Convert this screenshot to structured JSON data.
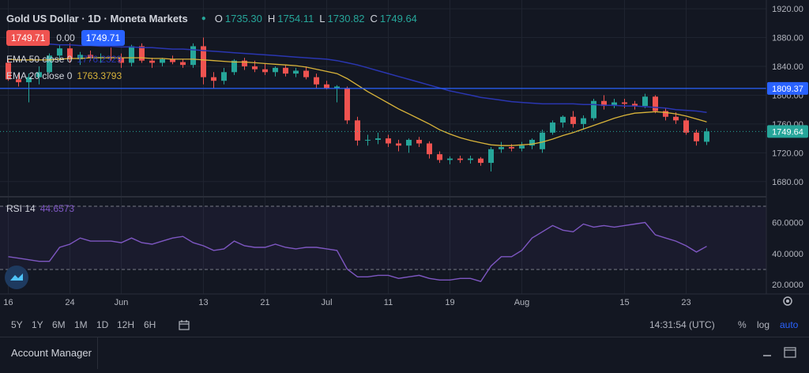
{
  "header": {
    "symbol": "Gold US Dollar · 1D · Moneta Markets",
    "open_label": "O",
    "open": "1735.30",
    "high_label": "H",
    "high": "1754.11",
    "low_label": "L",
    "low": "1730.82",
    "close_label": "C",
    "close": "1749.64"
  },
  "trade": {
    "sell": "1749.71",
    "spread": "0.00",
    "buy": "1749.71"
  },
  "indicators": {
    "ema50_label": "EMA 50 close 0",
    "ema50_value": "1776.2329",
    "ema20_label": "EMA 20 close 0",
    "ema20_value": "1763.3793",
    "rsi_label": "RSI 14",
    "rsi_value": "44.6573"
  },
  "toolbar": {
    "timeframes": [
      "5Y",
      "1Y",
      "6M",
      "1M",
      "1D",
      "12H",
      "6H"
    ],
    "clock": "14:31:54 (UTC)",
    "percent": "%",
    "log": "log",
    "auto": "auto"
  },
  "bottom": {
    "account_manager": "Account Manager"
  },
  "colors": {
    "up": "#26a69a",
    "down": "#ef5350",
    "ema50": "#2a36b1",
    "ema20": "#d9b43a",
    "rsi": "#7e57c2",
    "level": "#2962ff"
  },
  "chart_data": {
    "type": "candlestick",
    "y_ticks": [
      1680,
      1720,
      1760,
      1800,
      1840,
      1880,
      1920
    ],
    "y_tick_labels": [
      "1680.00",
      "1720.00",
      "1760.00",
      "1800.00",
      "1840.00",
      "1880.00",
      "1920.00"
    ],
    "ylim": [
      1660,
      1930
    ],
    "horizontal_level": {
      "value": 1809.37,
      "label": "1809.37"
    },
    "last_price": {
      "value": 1749.64,
      "label": "1749.64"
    },
    "x_labels": [
      "16",
      "24",
      "Jun",
      "13",
      "21",
      "Jul",
      "11",
      "19",
      "Aug",
      "15",
      "23"
    ],
    "x_label_index": [
      0,
      6,
      11,
      19,
      25,
      31,
      37,
      43,
      50,
      60,
      66
    ],
    "candles": [
      [
        1845,
        1850,
        1820,
        1822
      ],
      [
        1822,
        1830,
        1812,
        1818
      ],
      [
        1818,
        1830,
        1790,
        1825
      ],
      [
        1825,
        1840,
        1815,
        1832
      ],
      [
        1832,
        1858,
        1830,
        1855
      ],
      [
        1855,
        1870,
        1848,
        1865
      ],
      [
        1865,
        1872,
        1845,
        1850
      ],
      [
        1850,
        1860,
        1842,
        1856
      ],
      [
        1856,
        1862,
        1848,
        1852
      ],
      [
        1852,
        1858,
        1845,
        1853
      ],
      [
        1853,
        1866,
        1848,
        1852
      ],
      [
        1852,
        1858,
        1838,
        1845
      ],
      [
        1845,
        1870,
        1840,
        1868
      ],
      [
        1868,
        1872,
        1845,
        1848
      ],
      [
        1848,
        1852,
        1838,
        1845
      ],
      [
        1845,
        1852,
        1840,
        1850
      ],
      [
        1850,
        1855,
        1843,
        1846
      ],
      [
        1846,
        1850,
        1838,
        1842
      ],
      [
        1842,
        1872,
        1838,
        1868
      ],
      [
        1868,
        1880,
        1815,
        1825
      ],
      [
        1825,
        1832,
        1810,
        1820
      ],
      [
        1820,
        1838,
        1815,
        1832
      ],
      [
        1832,
        1850,
        1828,
        1848
      ],
      [
        1848,
        1852,
        1835,
        1840
      ],
      [
        1840,
        1848,
        1832,
        1836
      ],
      [
        1836,
        1844,
        1828,
        1832
      ],
      [
        1832,
        1840,
        1826,
        1838
      ],
      [
        1838,
        1842,
        1826,
        1830
      ],
      [
        1830,
        1838,
        1825,
        1834
      ],
      [
        1834,
        1840,
        1822,
        1825
      ],
      [
        1825,
        1830,
        1810,
        1815
      ],
      [
        1815,
        1820,
        1808,
        1810
      ],
      [
        1810,
        1814,
        1790,
        1812
      ],
      [
        1810,
        1812,
        1760,
        1765
      ],
      [
        1765,
        1770,
        1730,
        1737
      ],
      [
        1737,
        1745,
        1730,
        1738
      ],
      [
        1738,
        1748,
        1732,
        1740
      ],
      [
        1740,
        1745,
        1728,
        1733
      ],
      [
        1733,
        1738,
        1722,
        1730
      ],
      [
        1730,
        1740,
        1720,
        1738
      ],
      [
        1738,
        1742,
        1728,
        1733
      ],
      [
        1733,
        1736,
        1712,
        1718
      ],
      [
        1718,
        1722,
        1706,
        1710
      ],
      [
        1710,
        1715,
        1704,
        1712
      ],
      [
        1712,
        1716,
        1706,
        1710
      ],
      [
        1710,
        1716,
        1705,
        1712
      ],
      [
        1712,
        1714,
        1702,
        1706
      ],
      [
        1706,
        1728,
        1694,
        1725
      ],
      [
        1725,
        1735,
        1720,
        1728
      ],
      [
        1728,
        1732,
        1722,
        1726
      ],
      [
        1726,
        1735,
        1722,
        1730
      ],
      [
        1730,
        1740,
        1725,
        1738
      ],
      [
        1725,
        1752,
        1720,
        1748
      ],
      [
        1748,
        1765,
        1745,
        1762
      ],
      [
        1762,
        1772,
        1755,
        1770
      ],
      [
        1770,
        1778,
        1755,
        1760
      ],
      [
        1760,
        1772,
        1752,
        1768
      ],
      [
        1768,
        1795,
        1765,
        1792
      ],
      [
        1792,
        1800,
        1780,
        1785
      ],
      [
        1785,
        1795,
        1782,
        1790
      ],
      [
        1790,
        1795,
        1782,
        1788
      ],
      [
        1788,
        1792,
        1780,
        1785
      ],
      [
        1785,
        1802,
        1782,
        1798
      ],
      [
        1798,
        1800,
        1775,
        1778
      ],
      [
        1778,
        1782,
        1765,
        1770
      ],
      [
        1770,
        1776,
        1760,
        1765
      ],
      [
        1765,
        1768,
        1745,
        1748
      ],
      [
        1748,
        1752,
        1730,
        1736
      ],
      [
        1735.3,
        1754.11,
        1730.82,
        1749.64
      ]
    ],
    "ema50": [
      1875,
      1874,
      1873,
      1872,
      1871,
      1870,
      1870,
      1869,
      1869,
      1868,
      1868,
      1867,
      1867,
      1866,
      1866,
      1865,
      1864,
      1864,
      1863,
      1862,
      1861,
      1860,
      1859,
      1858,
      1857,
      1856,
      1855,
      1854,
      1853,
      1852,
      1851,
      1850,
      1848,
      1845,
      1842,
      1838,
      1834,
      1830,
      1826,
      1822,
      1818,
      1814,
      1810,
      1806,
      1803,
      1800,
      1797,
      1795,
      1793,
      1791,
      1790,
      1789,
      1788,
      1788,
      1788,
      1788,
      1787,
      1787,
      1786,
      1786,
      1785,
      1785,
      1784,
      1783,
      1782,
      1780,
      1779,
      1778,
      1776
    ],
    "ema20": [
      1850,
      1849,
      1849,
      1849,
      1849,
      1850,
      1851,
      1851,
      1852,
      1852,
      1852,
      1852,
      1852,
      1852,
      1851,
      1851,
      1850,
      1850,
      1850,
      1849,
      1848,
      1847,
      1846,
      1846,
      1845,
      1844,
      1843,
      1842,
      1841,
      1839,
      1836,
      1833,
      1830,
      1823,
      1814,
      1805,
      1797,
      1789,
      1781,
      1774,
      1767,
      1760,
      1752,
      1746,
      1741,
      1737,
      1734,
      1731,
      1730,
      1730,
      1731,
      1732,
      1735,
      1739,
      1744,
      1748,
      1753,
      1758,
      1763,
      1768,
      1772,
      1775,
      1776,
      1777,
      1776,
      1774,
      1771,
      1767,
      1763
    ],
    "rsi": {
      "ticks": [
        20,
        40,
        60
      ],
      "tick_labels": [
        "20.0000",
        "40.0000",
        "60.0000"
      ],
      "bands": [
        30,
        70
      ],
      "ylim": [
        15,
        75
      ],
      "values": [
        38,
        37,
        36,
        35,
        35,
        44,
        46,
        50,
        48,
        48,
        48,
        47,
        50,
        47,
        46,
        48,
        50,
        51,
        47,
        45,
        42,
        43,
        48,
        45,
        44,
        44,
        46,
        44,
        43,
        44,
        44,
        43,
        42,
        30,
        25,
        25,
        26,
        26,
        24,
        25,
        26,
        24,
        23,
        23,
        24,
        24,
        22,
        32,
        38,
        38,
        42,
        50,
        54,
        58,
        55,
        54,
        59,
        57,
        58,
        57,
        58,
        59,
        60,
        52,
        50,
        48,
        45,
        41,
        44.66
      ]
    }
  }
}
